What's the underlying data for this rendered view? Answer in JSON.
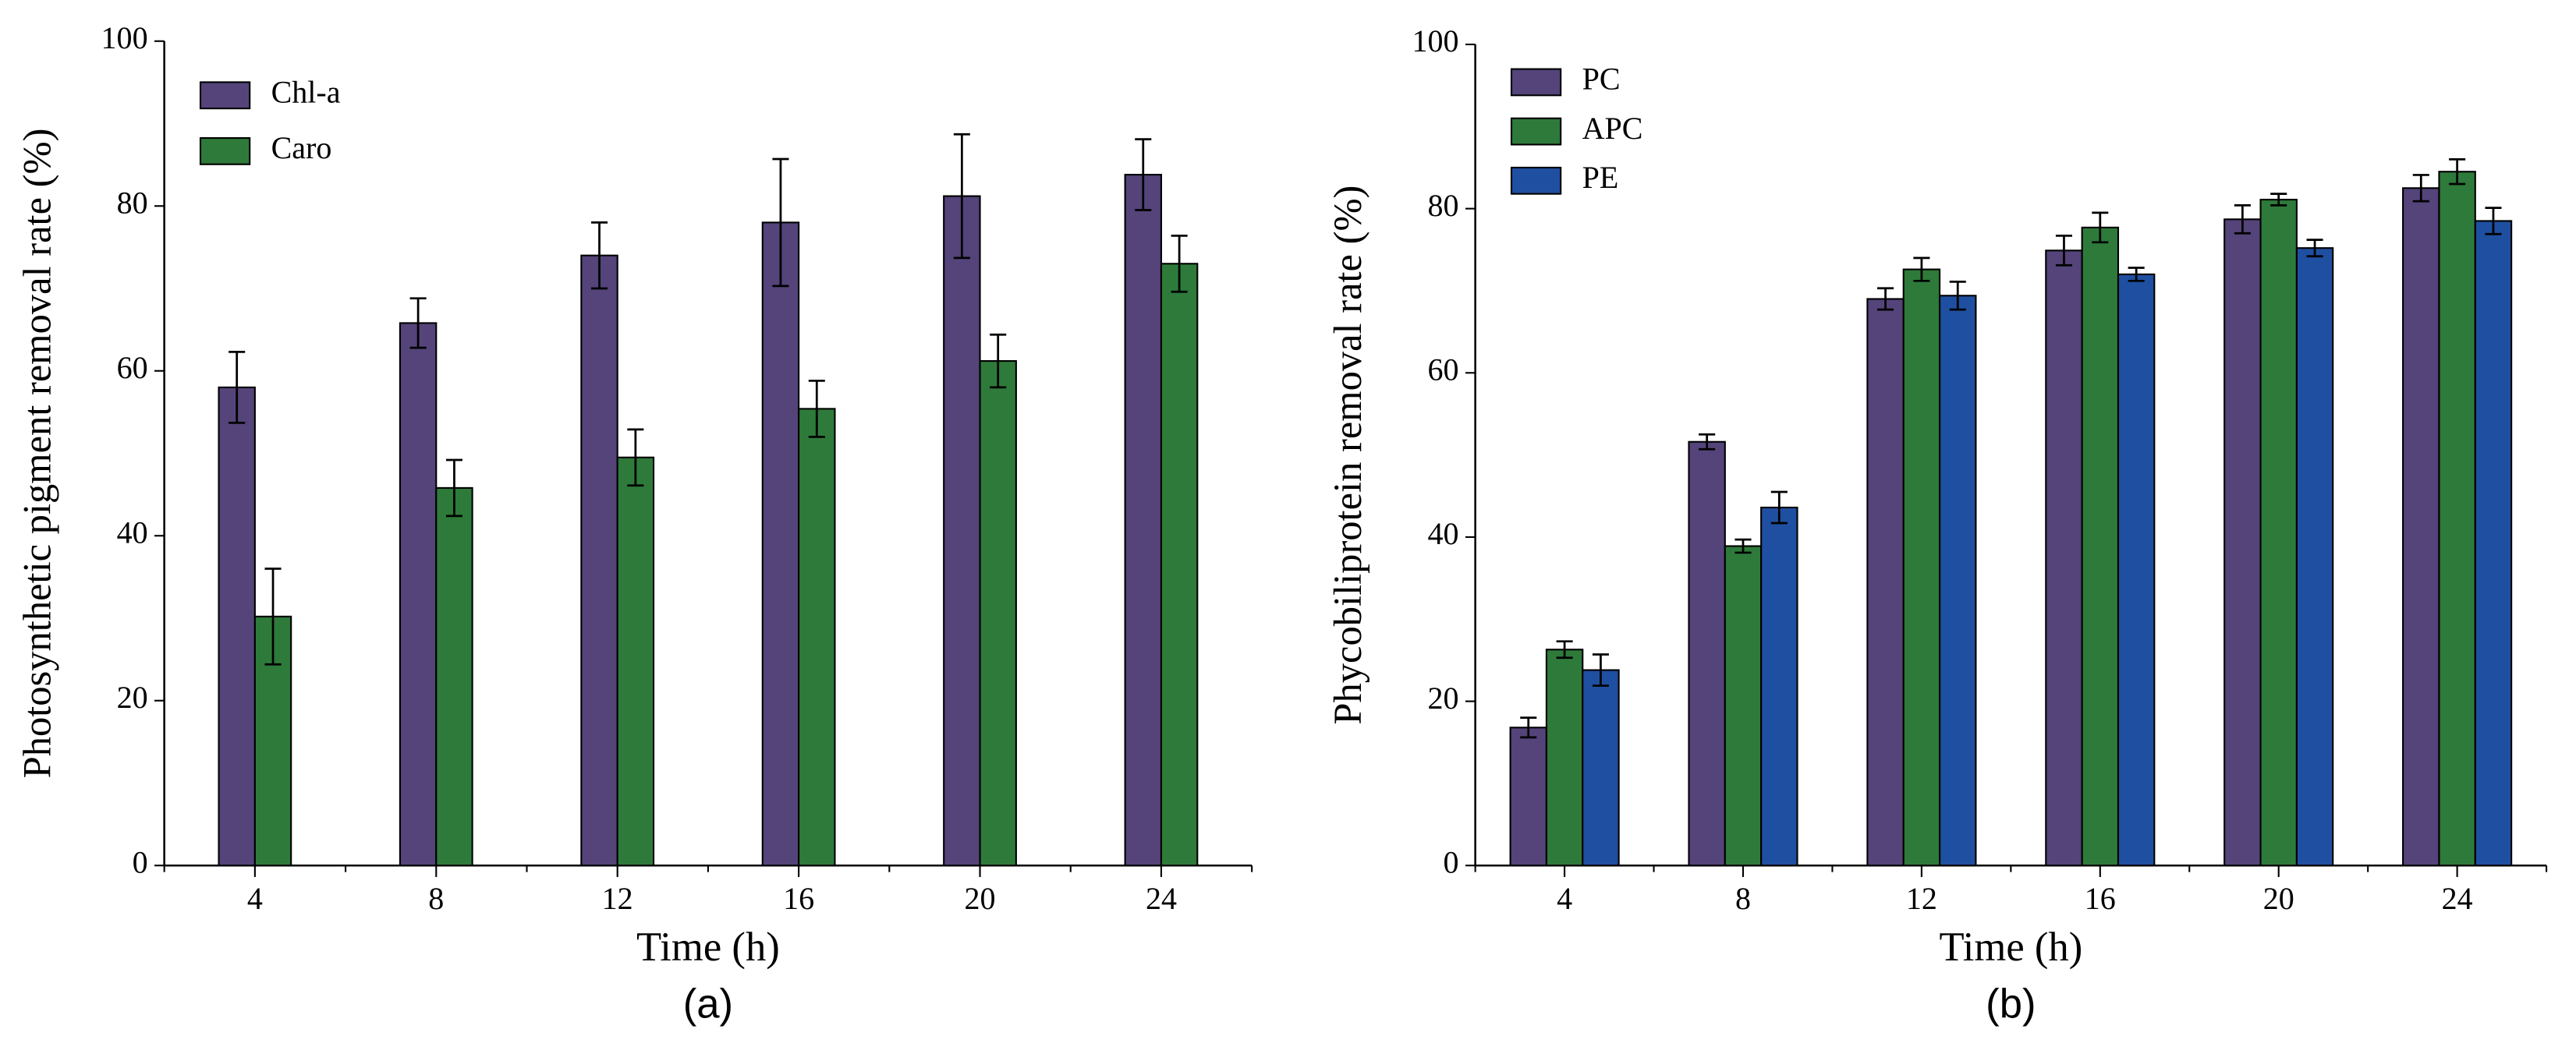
{
  "chart_data": [
    {
      "type": "bar",
      "panel_label": "(a)",
      "x_label": "Time (h)",
      "y_label": "Photosynthetic pigment removal rate (%)",
      "categories": [
        "4",
        "8",
        "12",
        "16",
        "20",
        "24"
      ],
      "series": [
        {
          "name": "Chl-a",
          "color": "#54447a",
          "values": [
            58,
            65.8,
            74,
            78,
            81.2,
            83.8
          ],
          "errors": [
            4.3,
            3,
            4,
            7.7,
            7.5,
            4.3
          ]
        },
        {
          "name": "Caro",
          "color": "#2e7a3a",
          "values": [
            30.2,
            45.8,
            49.5,
            55.4,
            61.2,
            73
          ],
          "errors": [
            5.8,
            3.4,
            3.4,
            3.4,
            3.2,
            3.4
          ]
        }
      ],
      "ylim": [
        0,
        100
      ],
      "yticks": [
        0,
        20,
        40,
        60,
        80,
        100
      ],
      "legend": "upper left"
    },
    {
      "type": "bar",
      "panel_label": "(b)",
      "x_label": "Time (h)",
      "y_label": "Phycobiliprotein removal rate (%)",
      "categories": [
        "4",
        "8",
        "12",
        "16",
        "20",
        "24"
      ],
      "series": [
        {
          "name": "PC",
          "color": "#54447a",
          "values": [
            16.8,
            51.6,
            69,
            74.9,
            78.7,
            82.5
          ],
          "errors": [
            1.2,
            0.9,
            1.3,
            1.8,
            1.7,
            1.6
          ]
        },
        {
          "name": "APC",
          "color": "#2e7a3a",
          "values": [
            26.3,
            38.9,
            72.6,
            77.7,
            81.1,
            84.5
          ],
          "errors": [
            1,
            0.8,
            1.4,
            1.8,
            0.7,
            1.5
          ]
        },
        {
          "name": "PE",
          "color": "#1f4fa0",
          "values": [
            23.8,
            43.6,
            69.4,
            72.0,
            75.2,
            78.5
          ],
          "errors": [
            1.9,
            1.9,
            1.7,
            0.8,
            1.0,
            1.6
          ]
        }
      ],
      "ylim": [
        0,
        100
      ],
      "yticks": [
        0,
        20,
        40,
        60,
        80,
        100
      ],
      "legend": "upper left"
    }
  ]
}
